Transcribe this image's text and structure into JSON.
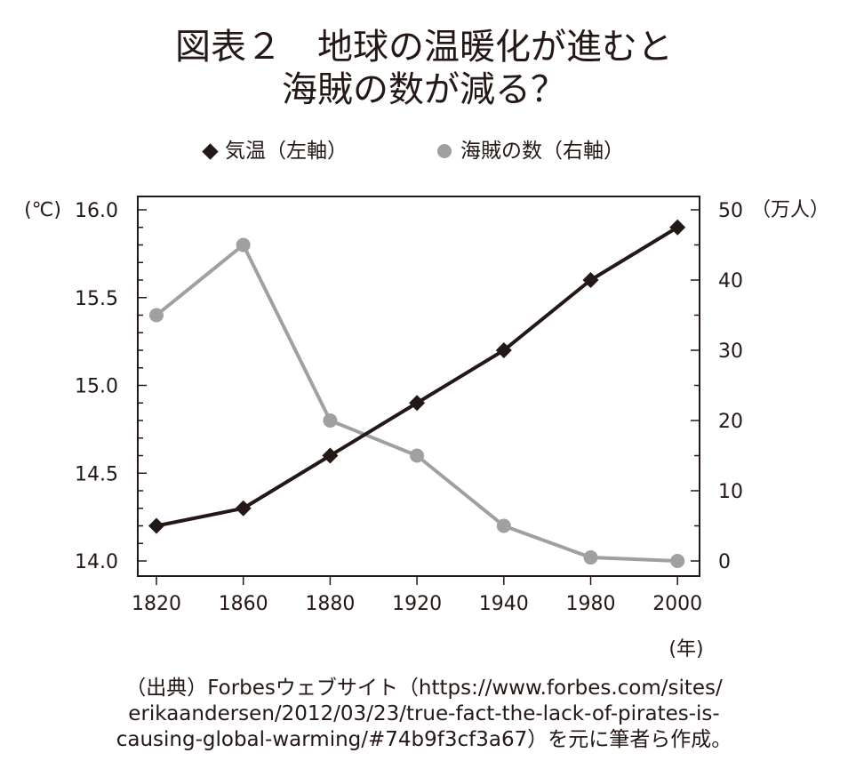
{
  "title": {
    "line1": "図表２　地球の温暖化が進むと",
    "line2": "海賊の数が減る？"
  },
  "legend": [
    {
      "label": "気温（左軸）",
      "marker": "diamond",
      "color": "#231815"
    },
    {
      "label": "海賊の数（右軸）",
      "marker": "circle",
      "color": "#a0a0a0"
    }
  ],
  "axes": {
    "left_unit": "(℃)",
    "right_unit": "（万人）",
    "x_unit": "(年)"
  },
  "chart_data": {
    "type": "line",
    "categories": [
      "1820",
      "1860",
      "1880",
      "1920",
      "1940",
      "1980",
      "2000"
    ],
    "series": [
      {
        "name": "気温（左軸）",
        "axis": "left",
        "color": "#231815",
        "marker": "diamond",
        "values": [
          14.2,
          14.3,
          14.6,
          14.9,
          15.2,
          15.6,
          15.9
        ]
      },
      {
        "name": "海賊の数（右軸）",
        "axis": "right",
        "color": "#a0a0a0",
        "marker": "circle",
        "values": [
          35,
          45,
          20,
          15,
          5,
          0.5,
          0
        ]
      }
    ],
    "y_left": {
      "range": [
        14.0,
        16.0
      ],
      "ticks": [
        "14.0",
        "14.5",
        "15.0",
        "15.5",
        "16.0"
      ]
    },
    "y_right": {
      "range": [
        0,
        50
      ],
      "ticks": [
        "0",
        "10",
        "20",
        "30",
        "40",
        "50"
      ]
    },
    "grid": false,
    "legend_position": "top"
  },
  "source": {
    "line1": "（出典）Forbesウェブサイト（https://www.forbes.com/sites/",
    "line2": "erikaandersen/2012/03/23/true-fact-the-lack-of-pirates-is-",
    "line3": "causing-global-warming/#74b9f3cf3a67）を元に筆者ら作成。"
  }
}
